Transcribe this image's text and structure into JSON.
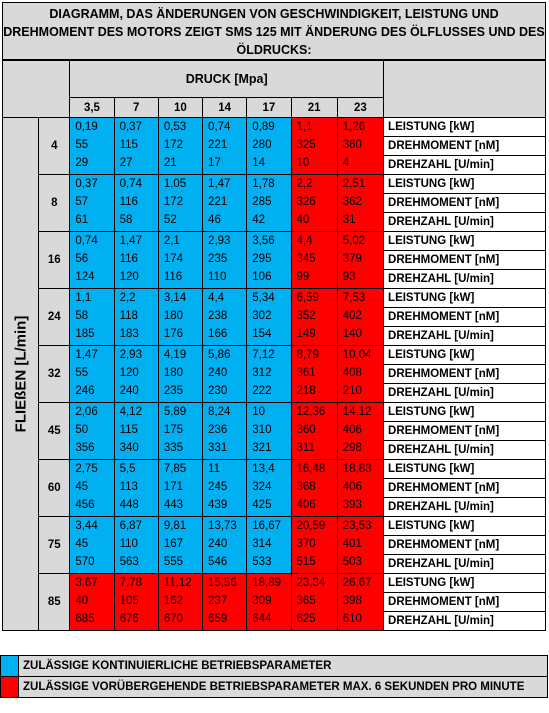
{
  "title": "DIAGRAMM, DAS ÄNDERUNGEN VON GESCHWINDIGKEIT, LEISTUNG UND DREHMOMENT DES MOTORS ZEIGT SMS 125 MIT ÄNDERUNG DES ÖLFLUSSES UND DES ÖLDRUCKS:",
  "pressure_header": "DRUCK  [Mpa]",
  "flow_header": "FLIEßEN [L/min]",
  "pressures": [
    "3,5",
    "7",
    "10",
    "14",
    "17",
    "21",
    "23"
  ],
  "row_labels": [
    "LEISTUNG [kW]",
    "DREHMOMENT [nM]",
    "DREHZAHL [U/min]"
  ],
  "colors": {
    "permitted": "#00b0f0",
    "temporary": "#ff0000",
    "header": "#d9d9d9"
  },
  "rows": [
    {
      "flow": "4",
      "cells": [
        {
          "status": "permitted",
          "v": [
            "0,19",
            "55",
            "29"
          ]
        },
        {
          "status": "permitted",
          "v": [
            "0,37",
            "115",
            "27"
          ]
        },
        {
          "status": "permitted",
          "v": [
            "0,53",
            "172",
            "21"
          ]
        },
        {
          "status": "permitted",
          "v": [
            "0,74",
            "221",
            "17"
          ]
        },
        {
          "status": "permitted",
          "v": [
            "0,89",
            "280",
            "14"
          ]
        },
        {
          "status": "temporary",
          "v": [
            "1,1",
            "325",
            "10"
          ]
        },
        {
          "status": "temporary",
          "v": [
            "1,26",
            "360",
            "4"
          ]
        }
      ]
    },
    {
      "flow": "8",
      "cells": [
        {
          "status": "permitted",
          "v": [
            "0,37",
            "57",
            "61"
          ]
        },
        {
          "status": "permitted",
          "v": [
            "0,74",
            "116",
            "58"
          ]
        },
        {
          "status": "permitted",
          "v": [
            "1,05",
            "172",
            "52"
          ]
        },
        {
          "status": "permitted",
          "v": [
            "1,47",
            "221",
            "46"
          ]
        },
        {
          "status": "permitted",
          "v": [
            "1,78",
            "285",
            "42"
          ]
        },
        {
          "status": "temporary",
          "v": [
            "2,2",
            "326",
            "40"
          ]
        },
        {
          "status": "temporary",
          "v": [
            "2,51",
            "362",
            "31"
          ]
        }
      ]
    },
    {
      "flow": "16",
      "cells": [
        {
          "status": "permitted",
          "v": [
            "0,74",
            "56",
            "124"
          ]
        },
        {
          "status": "permitted",
          "v": [
            "1,47",
            "116",
            "120"
          ]
        },
        {
          "status": "permitted",
          "v": [
            "2,1",
            "174",
            "116"
          ]
        },
        {
          "status": "permitted",
          "v": [
            "2,93",
            "235",
            "110"
          ]
        },
        {
          "status": "permitted",
          "v": [
            "3,56",
            "295",
            "106"
          ]
        },
        {
          "status": "temporary",
          "v": [
            "4,4",
            "345",
            "99"
          ]
        },
        {
          "status": "temporary",
          "v": [
            "5,02",
            "379",
            "93"
          ]
        }
      ]
    },
    {
      "flow": "24",
      "cells": [
        {
          "status": "permitted",
          "v": [
            "1,1",
            "58",
            "185"
          ]
        },
        {
          "status": "permitted",
          "v": [
            "2,2",
            "118",
            "183"
          ]
        },
        {
          "status": "permitted",
          "v": [
            "3,14",
            "180",
            "176"
          ]
        },
        {
          "status": "permitted",
          "v": [
            "4,4",
            "238",
            "166"
          ]
        },
        {
          "status": "permitted",
          "v": [
            "5,34",
            "302",
            "154"
          ]
        },
        {
          "status": "temporary",
          "v": [
            "6,59",
            "352",
            "149"
          ]
        },
        {
          "status": "temporary",
          "v": [
            "7,53",
            "402",
            "140"
          ]
        }
      ]
    },
    {
      "flow": "32",
      "cells": [
        {
          "status": "permitted",
          "v": [
            "1,47",
            "55",
            "246"
          ]
        },
        {
          "status": "permitted",
          "v": [
            "2,93",
            "120",
            "240"
          ]
        },
        {
          "status": "permitted",
          "v": [
            "4,19",
            "180",
            "235"
          ]
        },
        {
          "status": "permitted",
          "v": [
            "5,86",
            "240",
            "230"
          ]
        },
        {
          "status": "permitted",
          "v": [
            "7,12",
            "312",
            "222"
          ]
        },
        {
          "status": "temporary",
          "v": [
            "8,79",
            "361",
            "218"
          ]
        },
        {
          "status": "temporary",
          "v": [
            "10,04",
            "408",
            "210"
          ]
        }
      ]
    },
    {
      "flow": "45",
      "cells": [
        {
          "status": "permitted",
          "v": [
            "2,06",
            "50",
            "356"
          ]
        },
        {
          "status": "permitted",
          "v": [
            "4,12",
            "115",
            "340"
          ]
        },
        {
          "status": "permitted",
          "v": [
            "5,89",
            "175",
            "335"
          ]
        },
        {
          "status": "permitted",
          "v": [
            "8,24",
            "236",
            "331"
          ]
        },
        {
          "status": "permitted",
          "v": [
            "10",
            "310",
            "321"
          ]
        },
        {
          "status": "temporary",
          "v": [
            "12,36",
            "360",
            "311"
          ]
        },
        {
          "status": "temporary",
          "v": [
            "14,12",
            "406",
            "298"
          ]
        }
      ]
    },
    {
      "flow": "60",
      "cells": [
        {
          "status": "permitted",
          "v": [
            "2,75",
            "45",
            "456"
          ]
        },
        {
          "status": "permitted",
          "v": [
            "5,5",
            "113",
            "448"
          ]
        },
        {
          "status": "permitted",
          "v": [
            "7,85",
            "171",
            "443"
          ]
        },
        {
          "status": "permitted",
          "v": [
            "11",
            "245",
            "439"
          ]
        },
        {
          "status": "permitted",
          "v": [
            "13,4",
            "324",
            "425"
          ]
        },
        {
          "status": "temporary",
          "v": [
            "16,48",
            "368",
            "406"
          ]
        },
        {
          "status": "temporary",
          "v": [
            "18,83",
            "406",
            "393"
          ]
        }
      ]
    },
    {
      "flow": "75",
      "cells": [
        {
          "status": "permitted",
          "v": [
            "3,44",
            "45",
            "570"
          ]
        },
        {
          "status": "permitted",
          "v": [
            "6,87",
            "110",
            "563"
          ]
        },
        {
          "status": "permitted",
          "v": [
            "9,81",
            "167",
            "555"
          ]
        },
        {
          "status": "permitted",
          "v": [
            "13,73",
            "240",
            "546"
          ]
        },
        {
          "status": "permitted",
          "v": [
            "16,67",
            "314",
            "533"
          ]
        },
        {
          "status": "temporary",
          "v": [
            "20,59",
            "370",
            "515"
          ]
        },
        {
          "status": "temporary",
          "v": [
            "23,53",
            "401",
            "503"
          ]
        }
      ]
    },
    {
      "flow": "85",
      "cells": [
        {
          "status": "temporary",
          "v": [
            "3,67",
            "40",
            "685"
          ]
        },
        {
          "status": "temporary",
          "v": [
            "7,78",
            "105",
            "676"
          ]
        },
        {
          "status": "temporary",
          "v": [
            "11,12",
            "162",
            "670"
          ]
        },
        {
          "status": "temporary",
          "v": [
            "15,56",
            "237",
            "659"
          ]
        },
        {
          "status": "temporary",
          "v": [
            "18,89",
            "309",
            "644"
          ]
        },
        {
          "status": "temporary",
          "v": [
            "23,34",
            "365",
            "625"
          ]
        },
        {
          "status": "temporary",
          "v": [
            "26,67",
            "398",
            "610"
          ]
        }
      ]
    }
  ],
  "legend": [
    {
      "status": "permitted",
      "text": "ZULÄSSIGE KONTINUIERLICHE BETRIEBSPARAMETER"
    },
    {
      "status": "temporary",
      "text": "ZULÄSSIGE VORÜBERGEHENDE BETRIEBSPARAMETER MAX. 6 SEKUNDEN PRO MINUTE"
    }
  ]
}
